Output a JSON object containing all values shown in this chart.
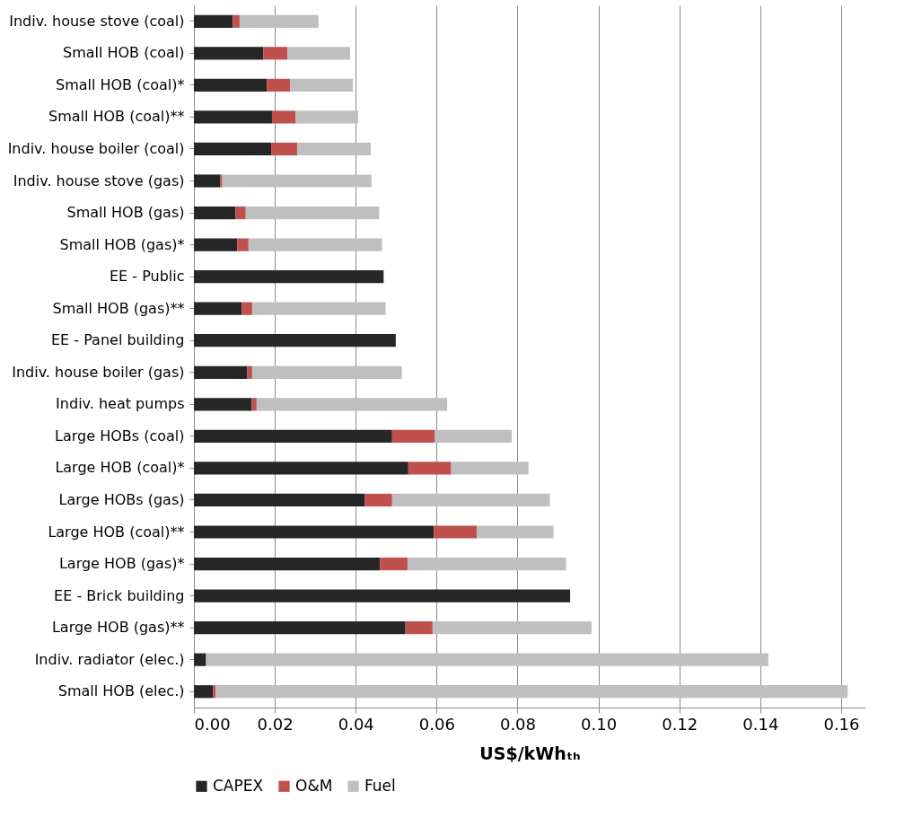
{
  "chart_data": {
    "type": "bar",
    "orientation": "horizontal",
    "stacked": true,
    "categories": [
      "Indiv. house stove (coal)",
      "Small HOB (coal)",
      "Small HOB (coal)*",
      "Small HOB (coal)**",
      "Indiv. house boiler (coal)",
      "Indiv. house stove (gas)",
      "Small HOB (gas)",
      "Small HOB (gas)*",
      "EE - Public",
      "Small HOB (gas)**",
      "EE - Panel building",
      "Indiv. house boiler (gas)",
      "Indiv. heat pumps",
      "Large HOBs (coal)",
      "Large HOB (coal)*",
      "Large HOBs (gas)",
      "Large HOB (coal)**",
      "Large HOB (gas)*",
      "EE - Brick building",
      "Large HOB (gas)**",
      "Indiv. radiator (elec.)",
      "Small HOB (elec.)"
    ],
    "series": [
      {
        "name": "CAPEX",
        "color": "#262626",
        "values": [
          0.0096,
          0.0172,
          0.018,
          0.0193,
          0.0191,
          0.0065,
          0.0103,
          0.0107,
          0.0469,
          0.0118,
          0.0499,
          0.0132,
          0.0143,
          0.049,
          0.053,
          0.0422,
          0.0593,
          0.046,
          0.093,
          0.0523,
          0.003,
          0.0047
        ]
      },
      {
        "name": "O&M",
        "color": "#c0504d",
        "values": [
          0.0017,
          0.0059,
          0.0058,
          0.0058,
          0.0065,
          0.0005,
          0.0025,
          0.0028,
          null,
          0.0026,
          null,
          0.0012,
          0.0012,
          0.0106,
          0.0106,
          0.0068,
          0.0106,
          0.0068,
          null,
          0.0067,
          null,
          0.0007
        ]
      },
      {
        "name": "Fuel",
        "color": "#bfbfbf",
        "values": [
          0.0195,
          0.0155,
          0.0155,
          0.0155,
          0.0181,
          0.0369,
          0.033,
          0.033,
          null,
          0.033,
          null,
          0.037,
          0.0471,
          0.019,
          0.0191,
          0.039,
          0.019,
          0.0392,
          null,
          0.0393,
          0.139,
          0.1562
        ]
      }
    ],
    "xlabel": "US$/kWhₜₕ",
    "xlim": [
      0,
      0.166
    ],
    "xticks": [
      {
        "value": 0,
        "label": "0.00"
      },
      {
        "value": 0.02,
        "label": "0.02"
      },
      {
        "value": 0.04,
        "label": "0.04"
      },
      {
        "value": 0.06,
        "label": "0.06"
      },
      {
        "value": 0.08,
        "label": "0.08"
      },
      {
        "value": 0.1,
        "label": "0.10"
      },
      {
        "value": 0.12,
        "label": "0.12"
      },
      {
        "value": 0.14,
        "label": "0.14"
      },
      {
        "value": 0.16,
        "label": "0.16"
      }
    ],
    "grid": "x",
    "legend": "bottom"
  }
}
